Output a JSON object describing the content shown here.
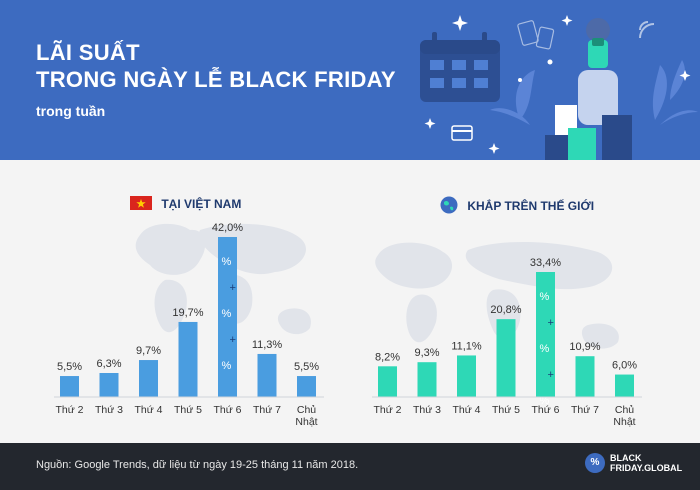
{
  "header": {
    "title_line1": "LÃI SUẤT",
    "title_line2": "TRONG NGÀY LỄ BLACK FRIDAY",
    "subtitle": "trong tuần"
  },
  "footer": {
    "source": "Nguồn: Google Trends, dữ liệu từ ngày 19-25 tháng 11 năm 2018.",
    "brand": "BLACK FRIDAY.GLOBAL",
    "brand_badge": "%"
  },
  "colors": {
    "header_bg": "#3d6bc0",
    "vn_bar": "#4a9de0",
    "vn_highlight": "#4a9de0",
    "world_bar": "#2ed8b6",
    "world_highlight": "#2ed8b6",
    "footer_bg": "#23272e"
  },
  "chart_data": [
    {
      "type": "bar",
      "title": "TẠI VIỆT NAM",
      "icon": "vietnam-flag-icon",
      "categories": [
        "Thứ 2",
        "Thứ 3",
        "Thứ 4",
        "Thứ 5",
        "Thứ 6",
        "Thứ 7",
        "Chủ Nhật"
      ],
      "values": [
        5.5,
        6.3,
        9.7,
        19.7,
        42.0,
        11.3,
        5.5
      ],
      "labels": [
        "5,5%",
        "6,3%",
        "9,7%",
        "19,7%",
        "42,0%",
        "11,3%",
        "5,5%"
      ],
      "highlight_index": 4,
      "ylim": [
        0,
        42
      ],
      "grid": false
    },
    {
      "type": "bar",
      "title": "KHẮP TRÊN THẾ GIỚI",
      "icon": "globe-icon",
      "categories": [
        "Thứ 2",
        "Thứ 3",
        "Thứ 4",
        "Thứ 5",
        "Thứ 6",
        "Thứ 7",
        "Chủ Nhật"
      ],
      "values": [
        8.2,
        9.3,
        11.1,
        20.8,
        33.4,
        10.9,
        6.0
      ],
      "labels": [
        "8,2%",
        "9,3%",
        "11,1%",
        "20,8%",
        "33,4%",
        "10,9%",
        "6,0%"
      ],
      "highlight_index": 4,
      "ylim": [
        0,
        33.4
      ],
      "grid": false
    }
  ]
}
